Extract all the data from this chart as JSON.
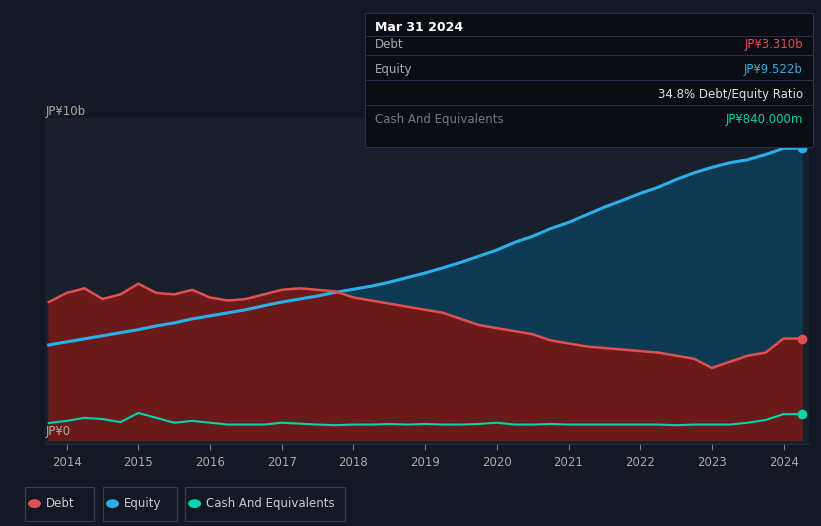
{
  "bg_color": "#141824",
  "plot_bg_color": "#1a1f2e",
  "ylabel_top": "JP¥10b",
  "ylabel_bottom": "JP¥0",
  "xlim_start": 2013.7,
  "xlim_end": 2024.35,
  "ylim_min": -0.15,
  "ylim_max": 10.5,
  "xticks": [
    2014,
    2015,
    2016,
    2017,
    2018,
    2019,
    2020,
    2021,
    2022,
    2023,
    2024
  ],
  "debt_color": "#e05050",
  "equity_color": "#2ab0e8",
  "cash_color": "#00d4aa",
  "debt_fill_color": "#6b1a1a",
  "equity_fill_color": "#0d3a52",
  "grid_color": "#2a3048",
  "years": [
    2013.75,
    2014.0,
    2014.25,
    2014.5,
    2014.75,
    2015.0,
    2015.25,
    2015.5,
    2015.75,
    2016.0,
    2016.25,
    2016.5,
    2016.75,
    2017.0,
    2017.25,
    2017.5,
    2017.75,
    2018.0,
    2018.25,
    2018.5,
    2018.75,
    2019.0,
    2019.25,
    2019.5,
    2019.75,
    2020.0,
    2020.25,
    2020.5,
    2020.75,
    2021.0,
    2021.25,
    2021.5,
    2021.75,
    2022.0,
    2022.25,
    2022.5,
    2022.75,
    2023.0,
    2023.25,
    2023.5,
    2023.75,
    2024.0,
    2024.25
  ],
  "debt": [
    4.5,
    4.8,
    4.95,
    4.6,
    4.75,
    5.1,
    4.8,
    4.75,
    4.9,
    4.65,
    4.55,
    4.6,
    4.75,
    4.9,
    4.95,
    4.9,
    4.85,
    4.65,
    4.55,
    4.45,
    4.35,
    4.25,
    4.15,
    3.95,
    3.75,
    3.65,
    3.55,
    3.45,
    3.25,
    3.15,
    3.05,
    3.0,
    2.95,
    2.9,
    2.85,
    2.75,
    2.65,
    2.35,
    2.55,
    2.75,
    2.85,
    3.31,
    3.31
  ],
  "equity": [
    3.1,
    3.2,
    3.3,
    3.4,
    3.5,
    3.6,
    3.72,
    3.82,
    3.95,
    4.05,
    4.15,
    4.25,
    4.38,
    4.5,
    4.6,
    4.7,
    4.82,
    4.92,
    5.02,
    5.15,
    5.3,
    5.45,
    5.62,
    5.8,
    6.0,
    6.2,
    6.45,
    6.65,
    6.9,
    7.1,
    7.35,
    7.6,
    7.82,
    8.05,
    8.25,
    8.5,
    8.72,
    8.9,
    9.05,
    9.15,
    9.32,
    9.522,
    9.522
  ],
  "cash": [
    0.55,
    0.62,
    0.72,
    0.68,
    0.58,
    0.88,
    0.72,
    0.56,
    0.62,
    0.56,
    0.5,
    0.5,
    0.5,
    0.56,
    0.53,
    0.5,
    0.48,
    0.5,
    0.5,
    0.52,
    0.5,
    0.52,
    0.5,
    0.5,
    0.52,
    0.56,
    0.5,
    0.5,
    0.52,
    0.5,
    0.5,
    0.5,
    0.5,
    0.5,
    0.5,
    0.48,
    0.5,
    0.5,
    0.5,
    0.56,
    0.65,
    0.84,
    0.84
  ],
  "tooltip": {
    "title": "Mar 31 2024",
    "rows": [
      {
        "label": "Debt",
        "value": "JP¥3.310b",
        "label_color": "#aaaaaa",
        "value_color": "#e05050"
      },
      {
        "label": "Equity",
        "value": "JP¥9.522b",
        "label_color": "#aaaaaa",
        "value_color": "#2ab0e8"
      },
      {
        "label": "",
        "value": "34.8% Debt/Equity Ratio",
        "label_color": "#aaaaaa",
        "value_color": "#e0e0e0"
      },
      {
        "label": "Cash And Equivalents",
        "value": "JP¥840.000m",
        "label_color": "#777777",
        "value_color": "#00d4aa"
      }
    ]
  },
  "legend_items": [
    {
      "label": "Debt",
      "color": "#e05050"
    },
    {
      "label": "Equity",
      "color": "#2ab0e8"
    },
    {
      "label": "Cash And Equivalents",
      "color": "#00d4aa"
    }
  ]
}
